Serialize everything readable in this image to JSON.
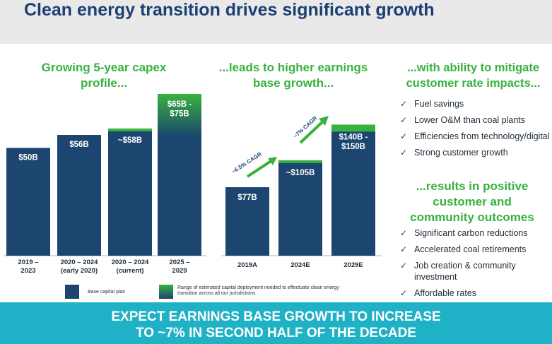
{
  "title": "Clean energy transition drives significant growth",
  "headings": {
    "capex": "Growing 5-year capex profile...",
    "earnings": "...leads to higher earnings base growth...",
    "mitigate": "...with ability to mitigate customer rate impacts...",
    "outcomes": "...results in positive customer and community outcomes"
  },
  "mitigate_bullets": [
    "Fuel savings",
    "Lower O&M than coal plants",
    "Efficiencies from technology/digital",
    "Strong customer growth"
  ],
  "outcome_bullets": [
    "Significant carbon reductions",
    "Accelerated coal retirements",
    "Job creation & community investment",
    "Affordable rates"
  ],
  "banner": {
    "line1": "EXPECT EARNINGS BASE GROWTH TO INCREASE",
    "line2": "TO ~7% IN SECOND HALF OF THE DECADE"
  },
  "colors": {
    "navy": "#1c4670",
    "green": "#37b23e",
    "banner": "#1fb1c5",
    "title": "#1c3f73"
  },
  "chart_data": [
    {
      "type": "bar",
      "categories": [
        "2019 – 2023",
        "2020 – 2024 (early 2020)",
        "2020 – 2024 (current)",
        "2025 – 2029"
      ],
      "category_lines": [
        [
          "2019 –",
          "2023"
        ],
        [
          "2020 – 2024",
          "(early 2020)"
        ],
        [
          "2020 – 2024",
          "(current)"
        ],
        [
          "2025 –",
          "2029"
        ]
      ],
      "series": [
        {
          "name": "Base capital plan",
          "values": [
            50,
            56,
            58,
            65
          ]
        },
        {
          "name": "Range of estimated capital deployment needed to effectuate clean energy transition across all our jurisdictions",
          "values": [
            0,
            0,
            0,
            10
          ]
        }
      ],
      "data_labels": [
        [
          "$50B"
        ],
        [
          "$56B"
        ],
        [
          "~$58B"
        ],
        [
          "$65B -",
          "$75B"
        ]
      ],
      "ylim": [
        0,
        80
      ],
      "legend": [
        {
          "label": "Base capital plan",
          "icon": "navy-swatch-icon"
        },
        {
          "label": "Range of estimated capital deployment needed to effectuate clean energy transition across all our jurisdictions",
          "icon": "green-gradient-swatch-icon"
        }
      ]
    },
    {
      "type": "bar",
      "categories": [
        "2019A",
        "2024E",
        "2029E"
      ],
      "values": [
        77,
        105,
        145
      ],
      "data_labels": [
        [
          "$77B"
        ],
        [
          "~$105B"
        ],
        [
          "$140B -",
          "$150B"
        ]
      ],
      "annotations": [
        "~6.5% CAGR",
        "~7% CAGR"
      ],
      "ylim": [
        0,
        160
      ]
    }
  ]
}
